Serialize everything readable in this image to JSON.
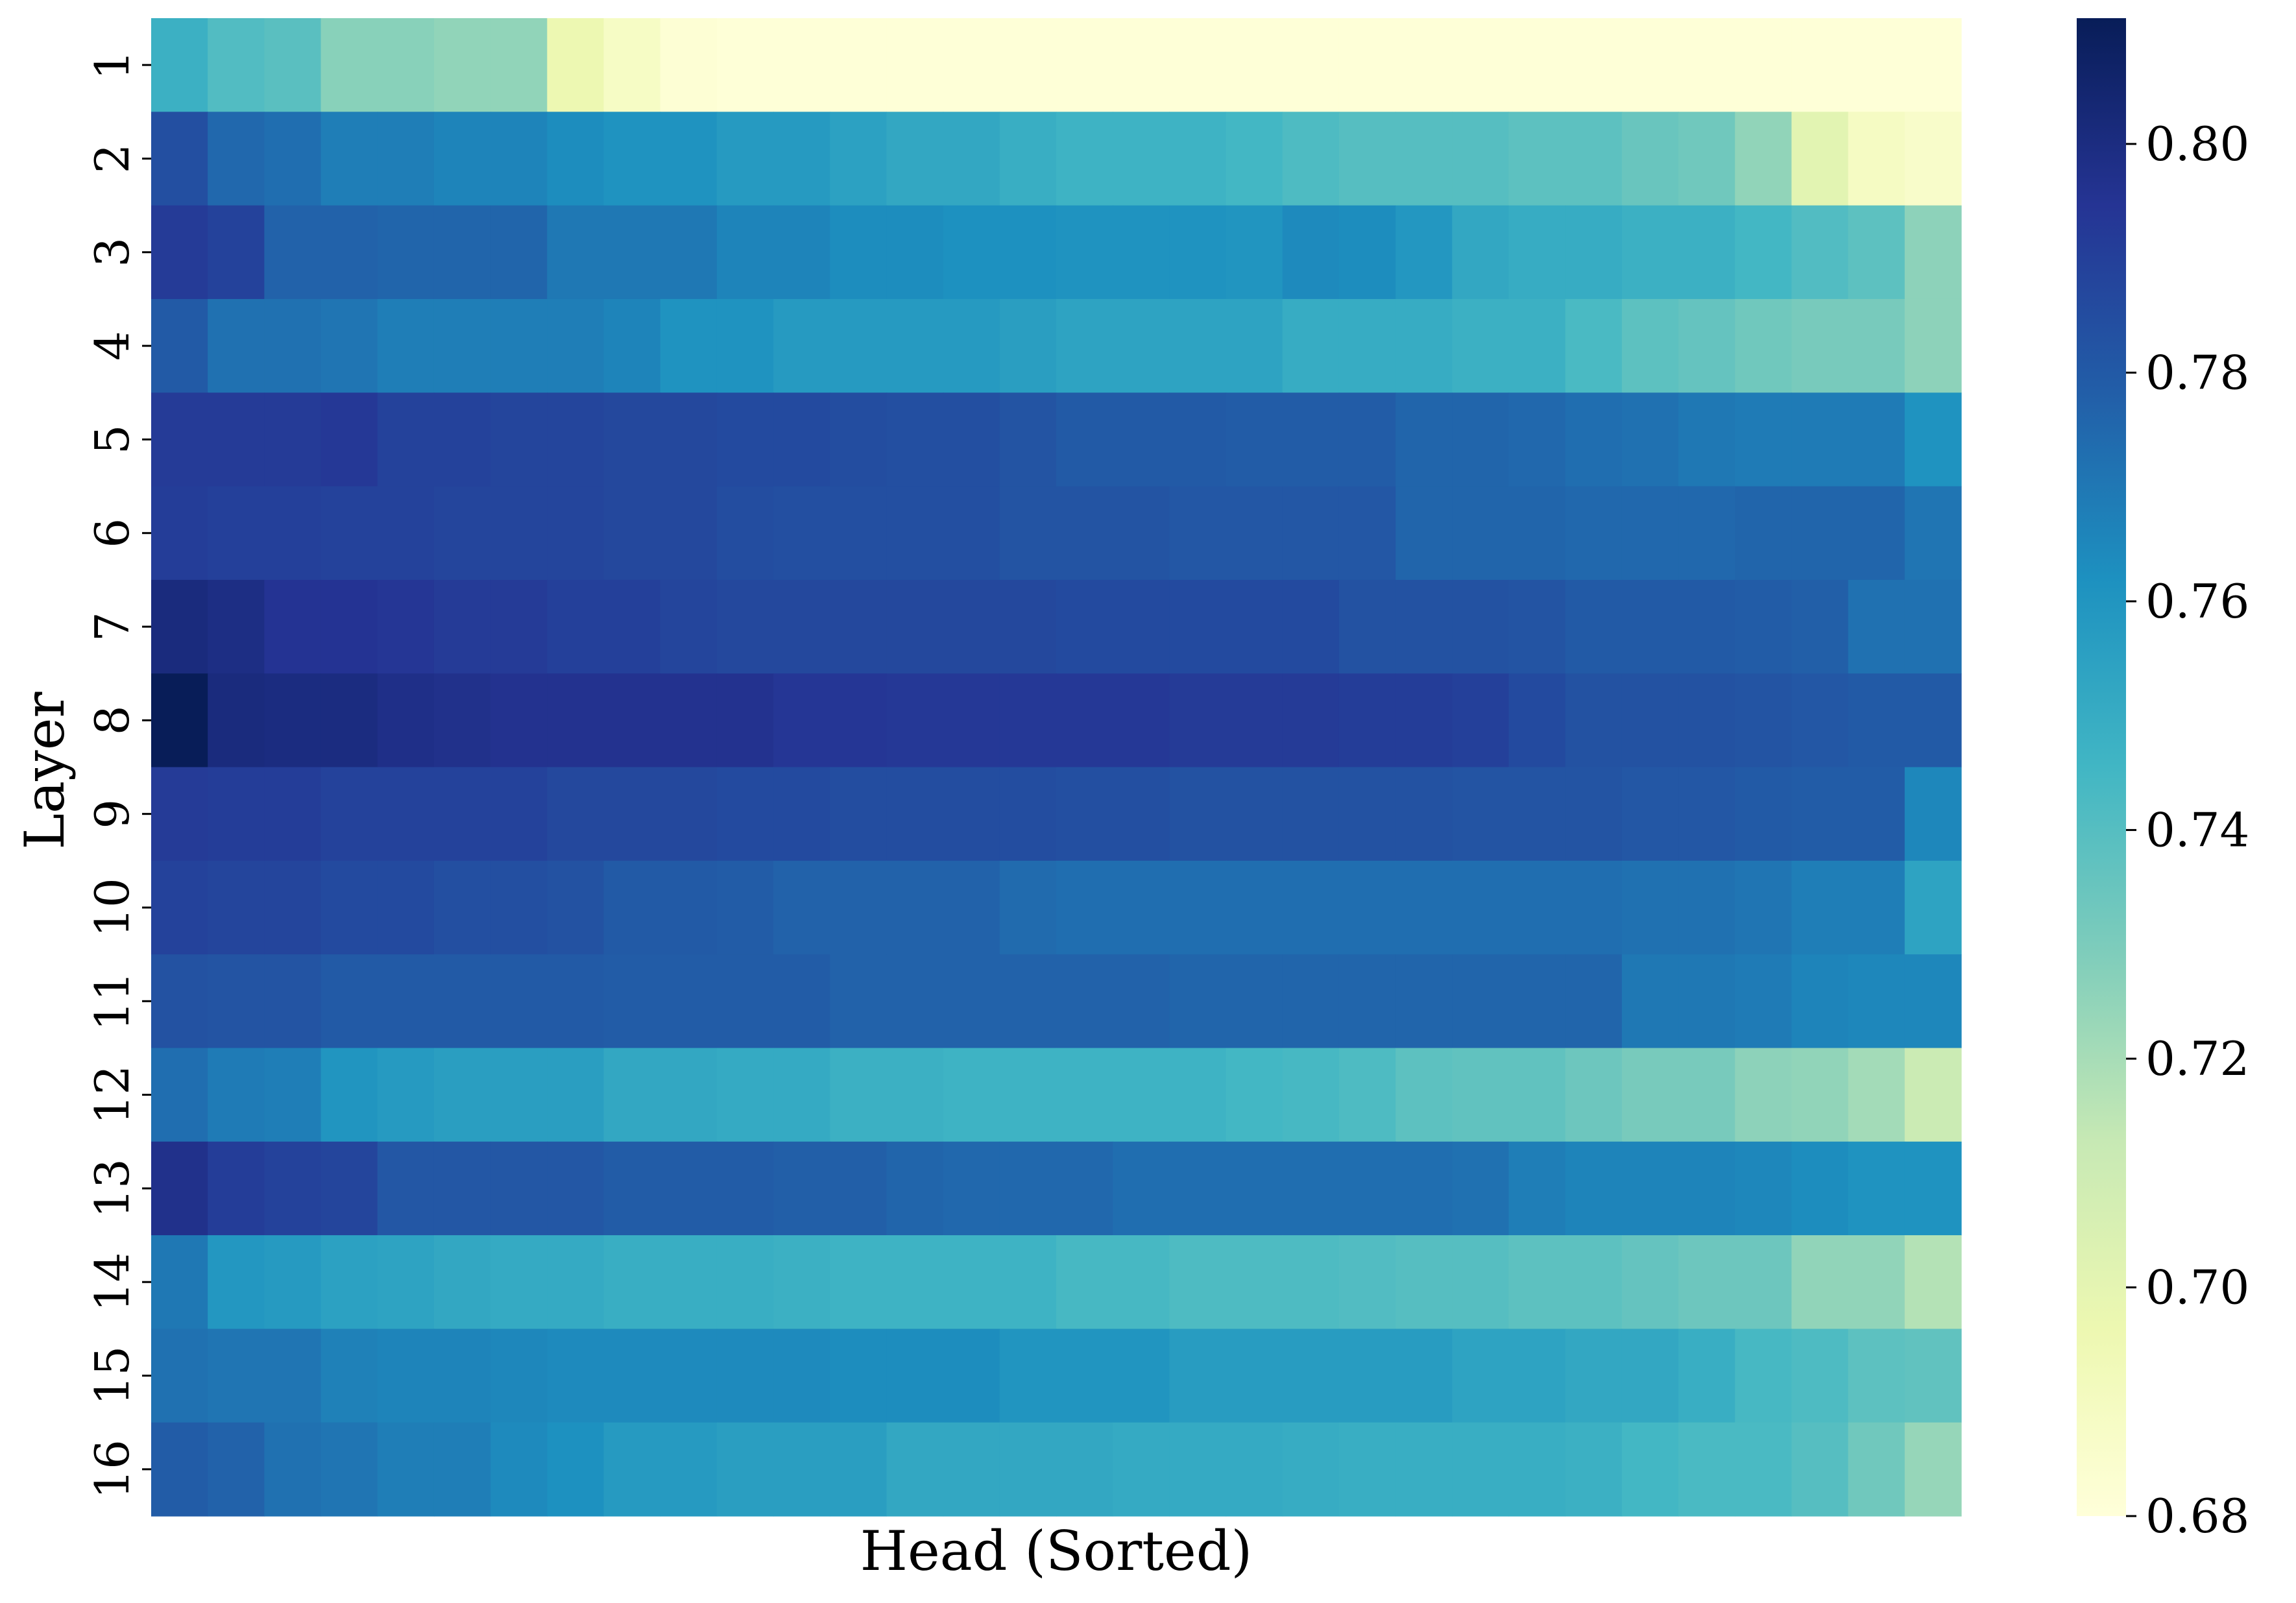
{
  "chart_data": {
    "type": "heatmap",
    "title": "",
    "xlabel": "Head (Sorted)",
    "ylabel": "Layer",
    "rows": [
      "1",
      "2",
      "3",
      "4",
      "5",
      "6",
      "7",
      "8",
      "9",
      "10",
      "11",
      "12",
      "13",
      "14",
      "15",
      "16"
    ],
    "n_cols": 32,
    "colormap": "YlGnBu",
    "vmin": 0.68,
    "vmax": 0.811,
    "colorbar_ticks": [
      "0.68",
      "0.70",
      "0.72",
      "0.74",
      "0.76",
      "0.78",
      "0.80"
    ],
    "values": [
      [
        0.748,
        0.741,
        0.739,
        0.727,
        0.727,
        0.725,
        0.725,
        0.696,
        0.688,
        0.682,
        0.681,
        0.681,
        0.681,
        0.681,
        0.681,
        0.681,
        0.681,
        0.681,
        0.681,
        0.681,
        0.681,
        0.681,
        0.681,
        0.681,
        0.681,
        0.681,
        0.681,
        0.681,
        0.681,
        0.681,
        0.681,
        0.681
      ],
      [
        0.784,
        0.775,
        0.773,
        0.768,
        0.768,
        0.766,
        0.766,
        0.763,
        0.761,
        0.761,
        0.758,
        0.758,
        0.755,
        0.752,
        0.752,
        0.749,
        0.747,
        0.747,
        0.747,
        0.745,
        0.742,
        0.74,
        0.74,
        0.74,
        0.738,
        0.738,
        0.735,
        0.733,
        0.725,
        0.701,
        0.689,
        0.686
      ],
      [
        0.792,
        0.789,
        0.777,
        0.777,
        0.776,
        0.776,
        0.776,
        0.77,
        0.77,
        0.77,
        0.766,
        0.766,
        0.763,
        0.763,
        0.762,
        0.762,
        0.761,
        0.761,
        0.761,
        0.76,
        0.764,
        0.763,
        0.759,
        0.752,
        0.75,
        0.75,
        0.748,
        0.748,
        0.745,
        0.741,
        0.738,
        0.726
      ],
      [
        0.78,
        0.772,
        0.772,
        0.771,
        0.768,
        0.768,
        0.768,
        0.768,
        0.766,
        0.761,
        0.761,
        0.758,
        0.758,
        0.758,
        0.758,
        0.756,
        0.754,
        0.754,
        0.754,
        0.754,
        0.75,
        0.75,
        0.75,
        0.748,
        0.748,
        0.743,
        0.738,
        0.736,
        0.733,
        0.731,
        0.731,
        0.726
      ],
      [
        0.792,
        0.792,
        0.792,
        0.793,
        0.789,
        0.789,
        0.788,
        0.788,
        0.787,
        0.787,
        0.786,
        0.786,
        0.785,
        0.784,
        0.784,
        0.782,
        0.78,
        0.78,
        0.78,
        0.779,
        0.779,
        0.779,
        0.776,
        0.776,
        0.775,
        0.773,
        0.772,
        0.77,
        0.769,
        0.769,
        0.769,
        0.761
      ],
      [
        0.791,
        0.79,
        0.79,
        0.789,
        0.789,
        0.788,
        0.788,
        0.788,
        0.787,
        0.787,
        0.785,
        0.784,
        0.784,
        0.784,
        0.784,
        0.782,
        0.782,
        0.782,
        0.781,
        0.781,
        0.781,
        0.781,
        0.776,
        0.776,
        0.776,
        0.775,
        0.775,
        0.775,
        0.776,
        0.776,
        0.776,
        0.771
      ],
      [
        0.801,
        0.799,
        0.795,
        0.795,
        0.794,
        0.792,
        0.792,
        0.79,
        0.79,
        0.788,
        0.787,
        0.787,
        0.787,
        0.787,
        0.787,
        0.787,
        0.786,
        0.786,
        0.786,
        0.786,
        0.786,
        0.783,
        0.783,
        0.783,
        0.782,
        0.78,
        0.78,
        0.78,
        0.779,
        0.778,
        0.772,
        0.772
      ],
      [
        0.811,
        0.801,
        0.8,
        0.8,
        0.798,
        0.797,
        0.796,
        0.796,
        0.796,
        0.796,
        0.796,
        0.794,
        0.794,
        0.793,
        0.793,
        0.793,
        0.793,
        0.793,
        0.792,
        0.792,
        0.792,
        0.791,
        0.791,
        0.79,
        0.786,
        0.783,
        0.783,
        0.783,
        0.782,
        0.781,
        0.78,
        0.78
      ],
      [
        0.792,
        0.791,
        0.791,
        0.789,
        0.789,
        0.789,
        0.789,
        0.787,
        0.787,
        0.787,
        0.786,
        0.786,
        0.785,
        0.785,
        0.785,
        0.785,
        0.784,
        0.784,
        0.783,
        0.783,
        0.783,
        0.783,
        0.783,
        0.782,
        0.782,
        0.782,
        0.781,
        0.781,
        0.78,
        0.779,
        0.779,
        0.765
      ],
      [
        0.789,
        0.788,
        0.788,
        0.786,
        0.786,
        0.784,
        0.784,
        0.783,
        0.78,
        0.78,
        0.779,
        0.777,
        0.777,
        0.777,
        0.777,
        0.774,
        0.773,
        0.773,
        0.773,
        0.773,
        0.773,
        0.773,
        0.773,
        0.773,
        0.773,
        0.773,
        0.772,
        0.772,
        0.771,
        0.768,
        0.768,
        0.754
      ],
      [
        0.783,
        0.782,
        0.782,
        0.78,
        0.78,
        0.78,
        0.78,
        0.78,
        0.779,
        0.779,
        0.779,
        0.779,
        0.777,
        0.777,
        0.777,
        0.777,
        0.777,
        0.777,
        0.776,
        0.776,
        0.776,
        0.776,
        0.776,
        0.776,
        0.776,
        0.776,
        0.77,
        0.77,
        0.769,
        0.766,
        0.765,
        0.765
      ],
      [
        0.773,
        0.769,
        0.768,
        0.76,
        0.758,
        0.756,
        0.756,
        0.756,
        0.752,
        0.752,
        0.751,
        0.751,
        0.748,
        0.748,
        0.747,
        0.747,
        0.747,
        0.747,
        0.747,
        0.745,
        0.744,
        0.742,
        0.738,
        0.737,
        0.737,
        0.734,
        0.731,
        0.731,
        0.726,
        0.725,
        0.721,
        0.711
      ],
      [
        0.797,
        0.791,
        0.789,
        0.788,
        0.781,
        0.781,
        0.781,
        0.781,
        0.779,
        0.779,
        0.779,
        0.778,
        0.778,
        0.776,
        0.775,
        0.775,
        0.775,
        0.773,
        0.773,
        0.773,
        0.773,
        0.773,
        0.773,
        0.772,
        0.768,
        0.766,
        0.766,
        0.766,
        0.765,
        0.763,
        0.761,
        0.761
      ],
      [
        0.77,
        0.759,
        0.758,
        0.755,
        0.754,
        0.752,
        0.751,
        0.751,
        0.749,
        0.749,
        0.749,
        0.748,
        0.747,
        0.747,
        0.747,
        0.747,
        0.744,
        0.744,
        0.742,
        0.742,
        0.742,
        0.741,
        0.74,
        0.74,
        0.738,
        0.738,
        0.736,
        0.734,
        0.734,
        0.725,
        0.725,
        0.717
      ],
      [
        0.772,
        0.771,
        0.771,
        0.767,
        0.766,
        0.766,
        0.765,
        0.764,
        0.764,
        0.764,
        0.764,
        0.764,
        0.763,
        0.763,
        0.763,
        0.76,
        0.76,
        0.76,
        0.757,
        0.757,
        0.757,
        0.757,
        0.757,
        0.754,
        0.754,
        0.752,
        0.752,
        0.749,
        0.744,
        0.742,
        0.738,
        0.737
      ],
      [
        0.779,
        0.777,
        0.772,
        0.771,
        0.768,
        0.768,
        0.764,
        0.762,
        0.758,
        0.758,
        0.756,
        0.756,
        0.756,
        0.752,
        0.752,
        0.752,
        0.752,
        0.751,
        0.751,
        0.751,
        0.75,
        0.749,
        0.749,
        0.749,
        0.749,
        0.748,
        0.745,
        0.743,
        0.743,
        0.74,
        0.733,
        0.724
      ]
    ]
  }
}
